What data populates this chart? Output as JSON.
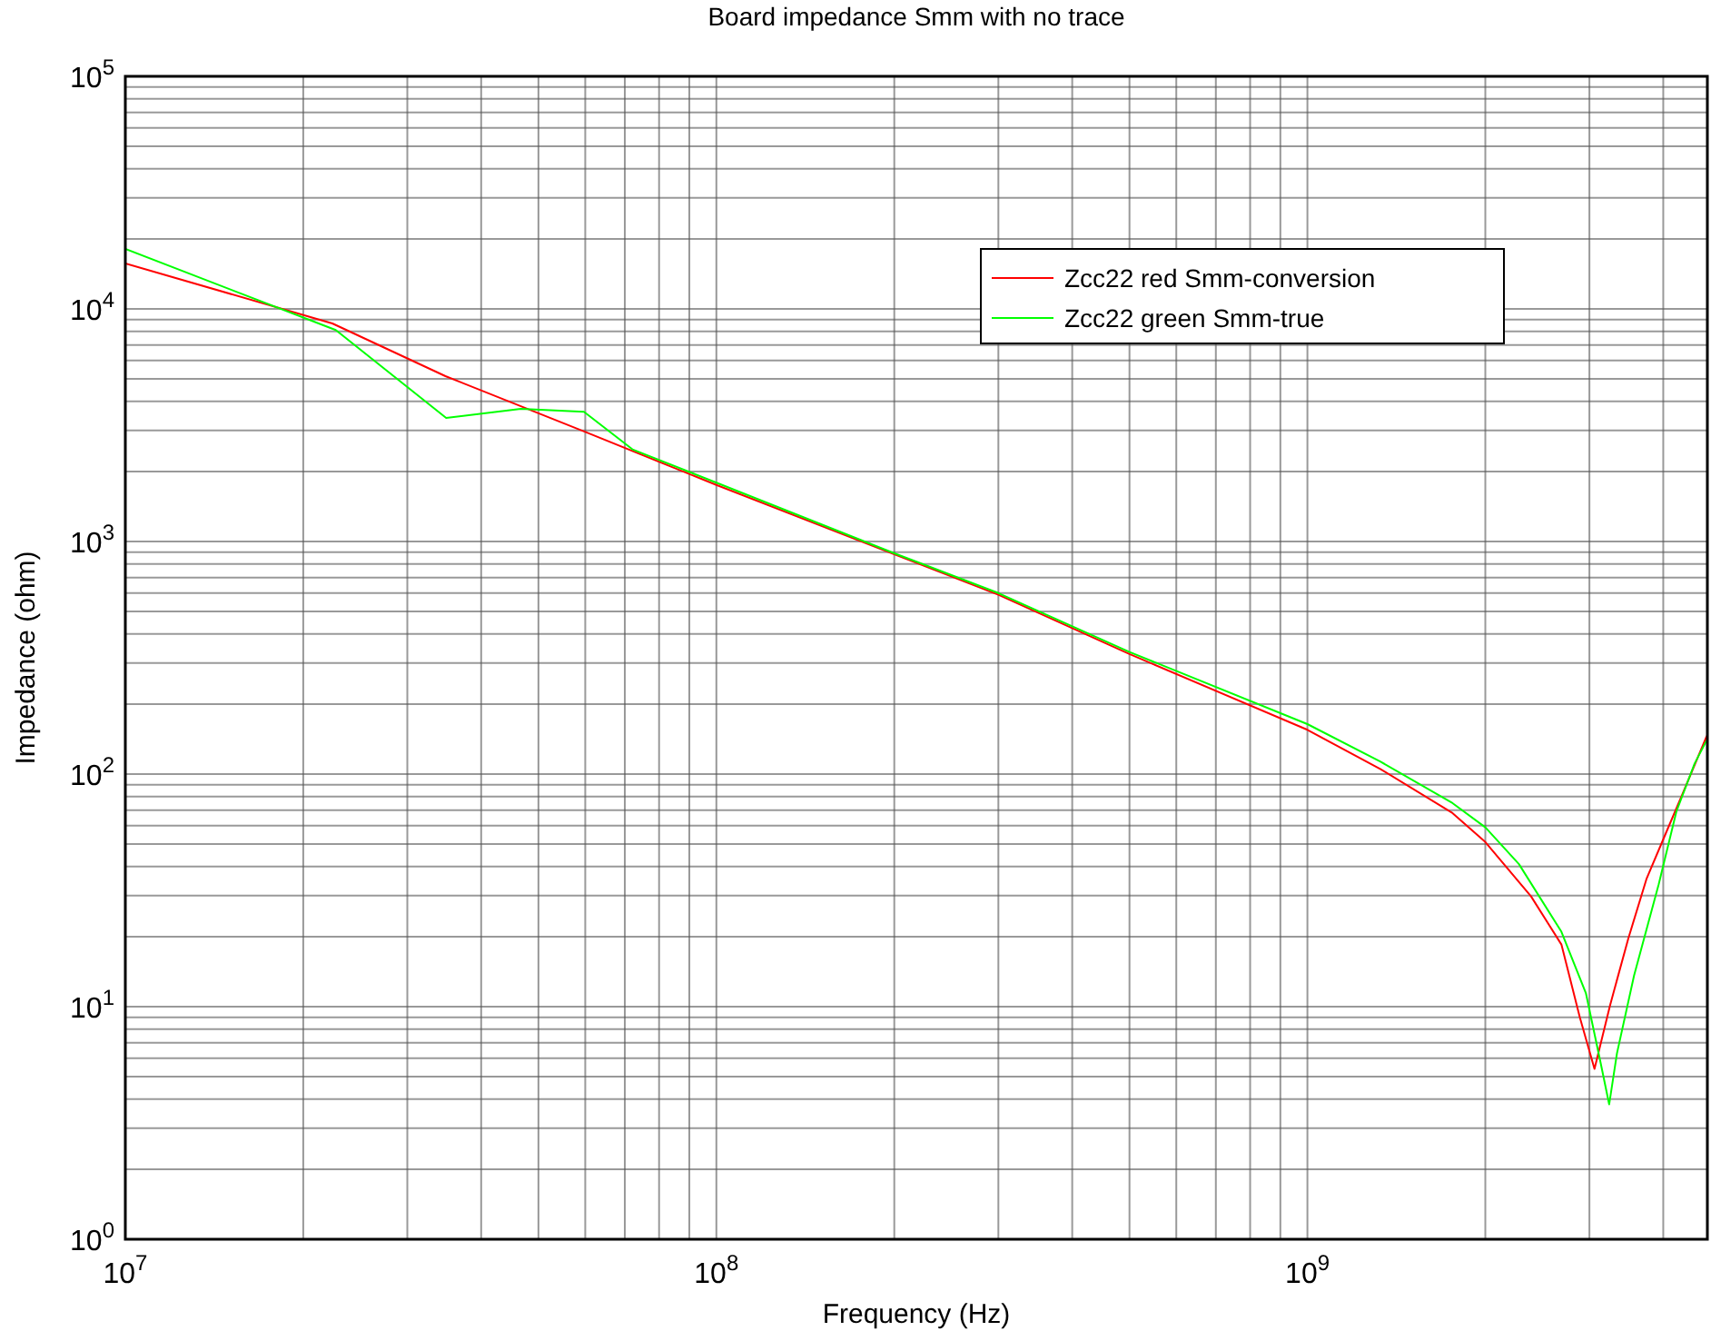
{
  "chart_data": {
    "type": "line",
    "title": "Board impedance Smm with no trace",
    "xlabel": "Frequency (Hz)",
    "ylabel": "Impedance (ohm)",
    "log": "xy",
    "grid": true,
    "legend": "top right",
    "line_style": "solid",
    "xlim": [
      10000000,
      4750000000
    ],
    "xticks": [
      {
        "value": 10000000,
        "label": "10$^{7}$"
      },
      {
        "value": 100000000,
        "label": "10$^{8}$"
      },
      {
        "value": 1000000000,
        "label": "10$^{9}$"
      }
    ],
    "ylim": [
      1,
      100000
    ],
    "yticks": [
      {
        "value": 1,
        "label": "10$^{0}$"
      },
      {
        "value": 10,
        "label": "10$^{1}$"
      },
      {
        "value": 100,
        "label": "10$^{2}$"
      },
      {
        "value": 1000,
        "label": "10$^{3}$"
      },
      {
        "value": 10000,
        "label": "10$^{4}$"
      },
      {
        "value": 100000,
        "label": "10$^{5}$"
      }
    ],
    "series": [
      {
        "name": "Zcc22 red Smm-conversion",
        "color": "#ff0000",
        "x": [
          10000000,
          22400000,
          34800000,
          60000000,
          100000000,
          200000000,
          300000000,
          500000000,
          1000000000,
          1330000000,
          1760000000,
          2000000000,
          2390000000,
          2690000000,
          2890000000,
          3060000000,
          3250000000,
          3490000000,
          3750000000,
          4020000000,
          4310000000,
          4740000000
        ],
        "values": [
          15700,
          8660,
          5140,
          2960,
          1750,
          881,
          590,
          328,
          155,
          105,
          68,
          51,
          29.8,
          18.5,
          9,
          5.4,
          10.1,
          19.6,
          35.6,
          54,
          82,
          146
        ]
      },
      {
        "name": "Zcc22 green Smm-true",
        "color": "#00ff00",
        "x": [
          10000000,
          22700000,
          34900000,
          46700000,
          59700000,
          72100000,
          100000000,
          200000000,
          300000000,
          500000000,
          1000000000,
          1330000000,
          1760000000,
          2000000000,
          2280000000,
          2690000000,
          2960000000,
          3140000000,
          3240000000,
          3340000000,
          3570000000,
          3930000000,
          4210000000,
          4520000000,
          4740000000
        ],
        "values": [
          18100,
          8110,
          3400,
          3720,
          3610,
          2490,
          1790,
          890,
          600,
          335,
          164,
          113,
          75,
          59,
          41,
          21,
          11.4,
          5.6,
          3.8,
          6.3,
          13.6,
          33.6,
          69,
          111,
          140
        ]
      }
    ]
  }
}
